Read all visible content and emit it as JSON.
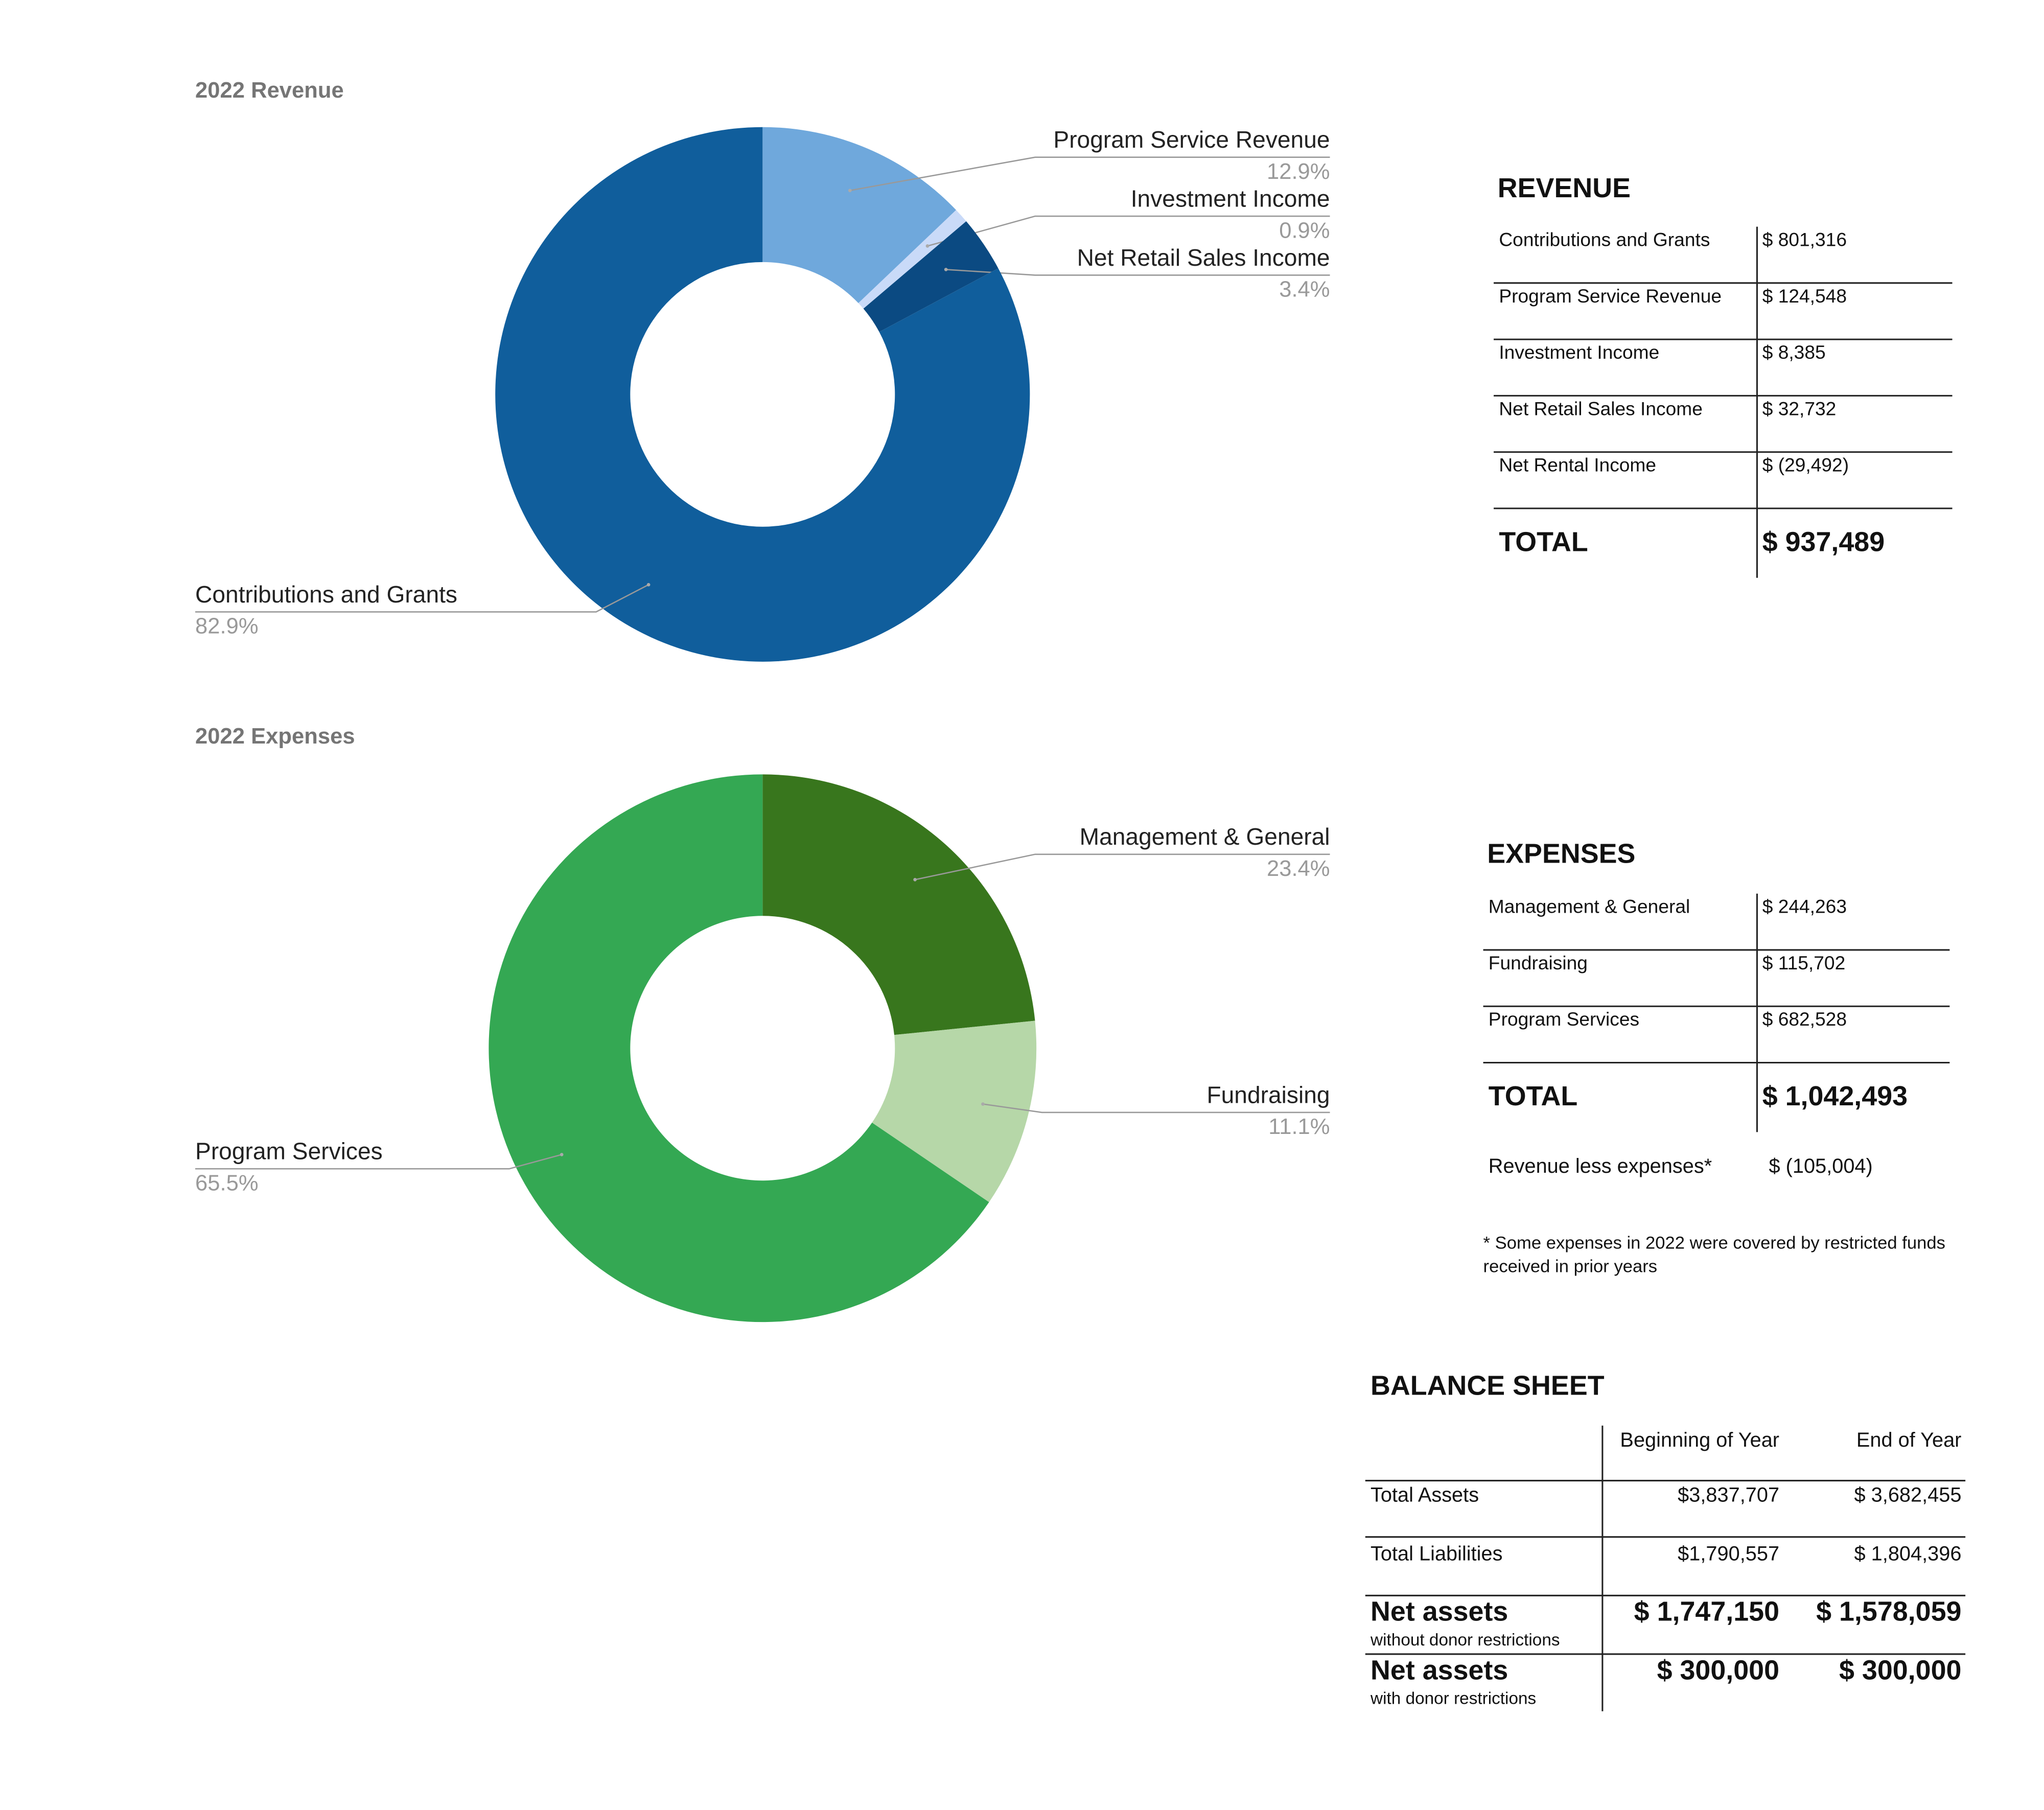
{
  "chart_data": [
    {
      "type": "donut",
      "title": "2022 Revenue",
      "categories": [
        "Program Service Revenue",
        "Investment Income",
        "Net Retail Sales Income",
        "Contributions and Grants"
      ],
      "values": [
        12.9,
        0.9,
        3.4,
        82.9
      ],
      "value_labels": [
        "12.9%",
        "0.9%",
        "3.4%",
        "82.9%"
      ],
      "colors": [
        "#6fa8dc",
        "#c9daf8",
        "#0b4a82",
        "#105e9c"
      ]
    },
    {
      "type": "donut",
      "title": "2022 Expenses",
      "categories": [
        "Management & General",
        "Fundraising",
        "Program Services"
      ],
      "values": [
        23.4,
        11.1,
        65.5
      ],
      "value_labels": [
        "23.4%",
        "11.1%",
        "65.5%"
      ],
      "colors": [
        "#38761d",
        "#b6d7a8",
        "#34a853"
      ]
    }
  ],
  "revenue_table": {
    "title": "REVENUE",
    "rows": [
      {
        "label": "Contributions and Grants",
        "amount": "$ 801,316"
      },
      {
        "label": "Program Service Revenue",
        "amount": "$ 124,548"
      },
      {
        "label": "Investment Income",
        "amount": "$ 8,385"
      },
      {
        "label": "Net Retail Sales Income",
        "amount": "$ 32,732"
      },
      {
        "label": "Net Rental Income",
        "amount": "$ (29,492)"
      }
    ],
    "total": {
      "label": "TOTAL",
      "amount": "$ 937,489"
    }
  },
  "expenses_table": {
    "title": "EXPENSES",
    "rows": [
      {
        "label": "Management & General",
        "amount": "$ 244,263"
      },
      {
        "label": "Fundraising",
        "amount": "$ 115,702"
      },
      {
        "label": "Program Services",
        "amount": "$ 682,528"
      }
    ],
    "total": {
      "label": "TOTAL",
      "amount": "$ 1,042,493"
    },
    "difference": {
      "label": "Revenue less expenses*",
      "amount": "$ (105,004)"
    },
    "footnote": "* Some expenses in 2022 were covered by restricted funds received in prior years"
  },
  "balance_sheet": {
    "title": "BALANCE SHEET",
    "columns": [
      "Beginning of Year",
      "End of Year"
    ],
    "rows": [
      {
        "label": "Total Assets",
        "values": [
          "$3,837,707",
          "$ 3,682,455"
        ]
      },
      {
        "label": "Total Liabilities",
        "values": [
          "$1,790,557",
          "$ 1,804,396"
        ]
      },
      {
        "label": "Net assets",
        "note": "without donor restrictions",
        "values": [
          "$ 1,747,150",
          "$ 1,578,059"
        ]
      },
      {
        "label": "Net assets",
        "note": "with donor restrictions",
        "values": [
          "$ 300,000",
          "$ 300,000"
        ]
      }
    ]
  }
}
